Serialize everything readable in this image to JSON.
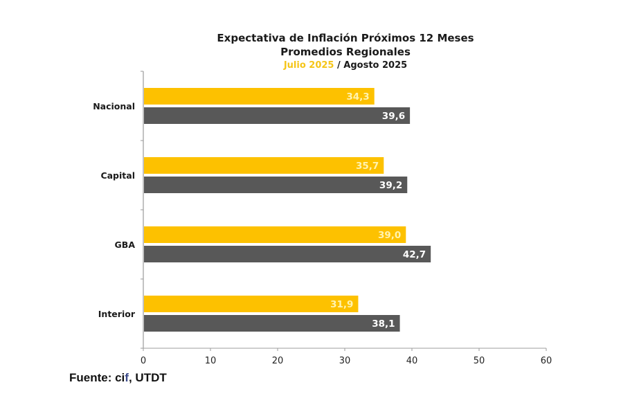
{
  "chart_data": {
    "type": "bar",
    "orientation": "horizontal",
    "title": "Expectativa de Inflación Próximos 12 Meses",
    "subtitle": "Promedios Regionales",
    "legend_line": {
      "series_a": "Julio 2025",
      "separator": " / ",
      "series_b": "Agosto 2025"
    },
    "categories": [
      "Nacional",
      "Capital",
      "GBA",
      "Interior"
    ],
    "series": [
      {
        "name": "Julio 2025",
        "color": "#fdc100",
        "label_color": "#fff3b0",
        "values": [
          34.3,
          35.7,
          39.0,
          31.9
        ],
        "labels": [
          "34,3",
          "35,7",
          "39,0",
          "31,9"
        ]
      },
      {
        "name": "Agosto 2025",
        "color": "#585858",
        "label_color": "#ffffff",
        "values": [
          39.6,
          39.2,
          42.7,
          38.1
        ],
        "labels": [
          "39,6",
          "39,2",
          "42,7",
          "38,1"
        ]
      }
    ],
    "xlim": [
      0,
      60
    ],
    "xticks": [
      0,
      10,
      20,
      30,
      40,
      50,
      60
    ],
    "xlabel": "",
    "ylabel": "",
    "grid": false
  },
  "source": {
    "prefix": "Fuente: ci",
    "accent": "f",
    "suffix": ", UTDT"
  }
}
